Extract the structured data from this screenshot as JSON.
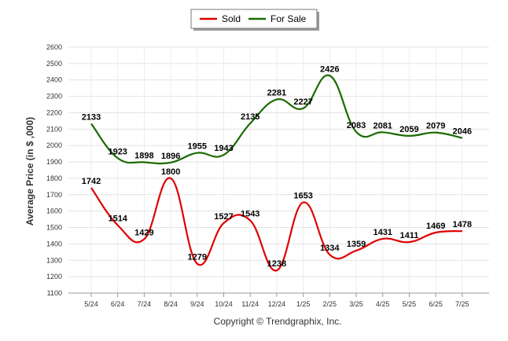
{
  "chart_data": {
    "type": "line",
    "categories": [
      "5/24",
      "6/24",
      "7/24",
      "8/24",
      "9/24",
      "10/24",
      "11/24",
      "12/24",
      "1/25",
      "2/25",
      "3/25",
      "4/25",
      "5/25",
      "6/25",
      "7/25"
    ],
    "series": [
      {
        "name": "Sold",
        "color": "#e00000",
        "values": [
          1742,
          1514,
          1429,
          1800,
          1279,
          1527,
          1543,
          1238,
          1653,
          1334,
          1359,
          1431,
          1411,
          1469,
          1478
        ]
      },
      {
        "name": "For Sale",
        "color": "#1a6b00",
        "values": [
          2133,
          1923,
          1898,
          1896,
          1955,
          1943,
          2135,
          2281,
          2227,
          2426,
          2083,
          2081,
          2059,
          2079,
          2046
        ]
      }
    ],
    "ylabel": "Average Price (in $ ,000)",
    "ylim": [
      1100,
      2600
    ],
    "yticks": [
      1100,
      1200,
      1300,
      1400,
      1500,
      1600,
      1700,
      1800,
      1900,
      2000,
      2100,
      2200,
      2300,
      2400,
      2500,
      2600
    ],
    "grid": true,
    "legend_position": "top-center",
    "credit": "Copyright © Trendgraphix, Inc."
  }
}
